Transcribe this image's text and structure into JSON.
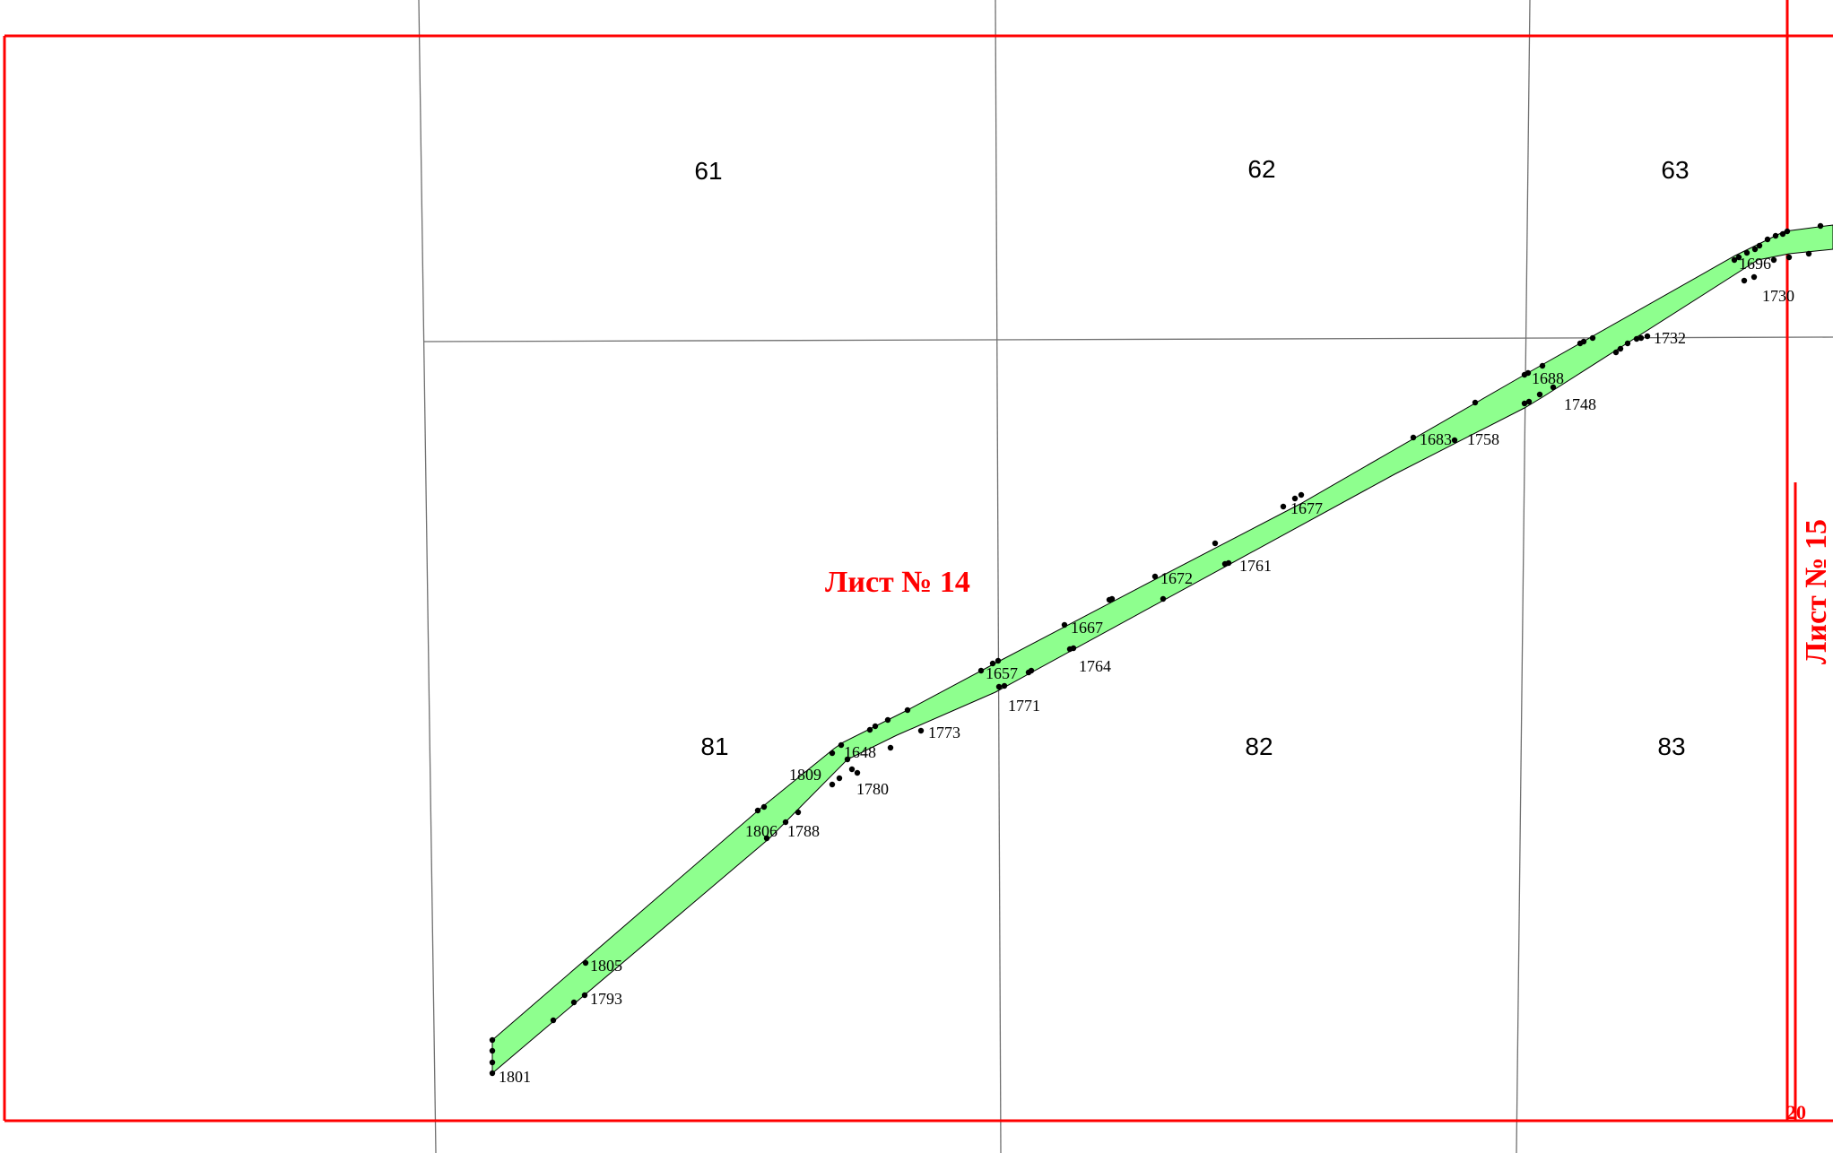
{
  "quarters": [
    "61",
    "62",
    "63",
    "81",
    "82",
    "83"
  ],
  "sheets": {
    "current": "Лист № 14",
    "adjacent": "Лист № 15",
    "corner_number": "20"
  },
  "points": [
    "1696",
    "1730",
    "1732",
    "1688",
    "1748",
    "1683",
    "1758",
    "1677",
    "1672",
    "1761",
    "1667",
    "1764",
    "1657",
    "1771",
    "1773",
    "1648",
    "1809",
    "1780",
    "1806",
    "1788",
    "1805",
    "1793",
    "1801"
  ],
  "colors": {
    "strip_fill": "#8eff8e",
    "sheet_frame": "#ff0000",
    "grid": "#707070",
    "vertex": "#000000"
  }
}
